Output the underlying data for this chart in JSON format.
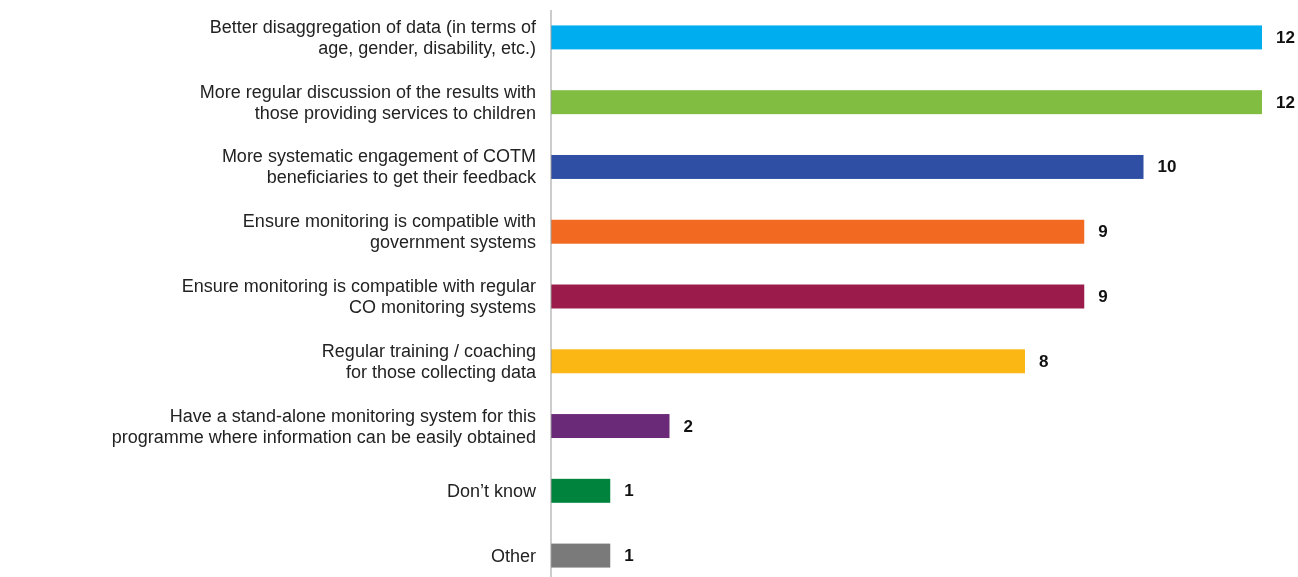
{
  "chart_data": {
    "type": "bar",
    "orientation": "horizontal",
    "data_labels": true,
    "categories": [
      "Better disaggregation of data (in terms of\nage, gender, disability, etc.)",
      "More regular discussion of the results with\nthose providing services to children",
      "More systematic engagement of COTM\nbeneficiaries to get their feedback",
      "Ensure monitoring is compatible with\ngovernment systems",
      "Ensure monitoring is compatible with regular\nCO monitoring systems",
      "Regular training / coaching\nfor those collecting data",
      "Have a stand-alone monitoring system for this\nprogramme where information can be easily obtained",
      "Don’t know",
      "Other"
    ],
    "values": [
      12,
      12,
      10,
      9,
      9,
      8,
      2,
      1,
      1
    ],
    "colors": [
      "#00aeef",
      "#80bd41",
      "#2e4fa3",
      "#f26a21",
      "#9b1b4a",
      "#fbb814",
      "#6a2a78",
      "#00843d",
      "#7a7a7a"
    ]
  }
}
